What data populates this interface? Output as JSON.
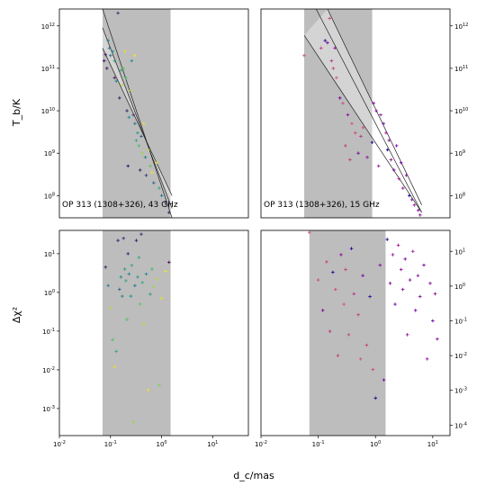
{
  "figure": {
    "shared_xlabel": "d_c/mas",
    "top_ylabel": "T_b/K",
    "bottom_ylabel": "Δχ²"
  },
  "chart_data": [
    {
      "type": "scatter",
      "panel": "top-left",
      "annotation": "OP 313 (1308+326), 43 GHz",
      "xscale": "log",
      "yscale": "log",
      "xlim": [
        0.01,
        50
      ],
      "ylim": [
        30000000,
        2500000000000
      ],
      "xticks": [],
      "xtick_labels": [],
      "yticks": [
        100000000,
        1000000000,
        10000000000,
        100000000000,
        1000000000000
      ],
      "ytick_labels": [
        "10^8",
        "10^9",
        "10^10",
        "10^11",
        "10^12"
      ],
      "yaxis_side": "left",
      "shaded_x_range": [
        0.07,
        1.5
      ],
      "fit_lines": [
        {
          "x": [
            0.07,
            1.6
          ],
          "y": [
            2500000000000,
            30000000
          ]
        },
        {
          "x": [
            0.07,
            1.6
          ],
          "y": [
            300000000000,
            100000000
          ]
        },
        {
          "x": [
            0.07,
            1.6
          ],
          "y": [
            900000000000,
            50000000
          ]
        }
      ],
      "colormap": "viridis",
      "points": [
        {
          "x": 0.075,
          "y": 150000000000,
          "c": 0.05
        },
        {
          "x": 0.08,
          "y": 210000000000,
          "c": 0.1
        },
        {
          "x": 0.085,
          "y": 100000000000,
          "c": 0.05
        },
        {
          "x": 0.09,
          "y": 450000000000,
          "c": 0.45
        },
        {
          "x": 0.095,
          "y": 300000000000,
          "c": 0.4
        },
        {
          "x": 0.1,
          "y": 200000000000,
          "c": 0.35
        },
        {
          "x": 0.11,
          "y": 250000000000,
          "c": 0.5
        },
        {
          "x": 0.12,
          "y": 150000000000,
          "c": 0.55
        },
        {
          "x": 0.12,
          "y": 60000000000,
          "c": 0.1
        },
        {
          "x": 0.13,
          "y": 50000000000,
          "c": 0.45
        },
        {
          "x": 0.14,
          "y": 2000000000000,
          "c": 0.15
        },
        {
          "x": 0.15,
          "y": 20000000000,
          "c": 0.1
        },
        {
          "x": 0.16,
          "y": 90000000000,
          "c": 0.6
        },
        {
          "x": 0.17,
          "y": 40000000000,
          "c": 0.9
        },
        {
          "x": 0.18,
          "y": 100000000000,
          "c": 0.75
        },
        {
          "x": 0.19,
          "y": 250000000000,
          "c": 0.95
        },
        {
          "x": 0.2,
          "y": 60000000000,
          "c": 0.7
        },
        {
          "x": 0.21,
          "y": 10000000000,
          "c": 0.1
        },
        {
          "x": 0.22,
          "y": 500000000,
          "c": 0.05
        },
        {
          "x": 0.23,
          "y": 7000000000,
          "c": 0.5
        },
        {
          "x": 0.25,
          "y": 30000000000,
          "c": 0.9
        },
        {
          "x": 0.26,
          "y": 150000000000,
          "c": 0.5
        },
        {
          "x": 0.28,
          "y": 8000000000,
          "c": 0.2
        },
        {
          "x": 0.3,
          "y": 200000000000,
          "c": 0.98
        },
        {
          "x": 0.3,
          "y": 5000000000,
          "c": 0.4
        },
        {
          "x": 0.32,
          "y": 2000000000,
          "c": 0.6
        },
        {
          "x": 0.34,
          "y": 3000000000,
          "c": 0.55
        },
        {
          "x": 0.36,
          "y": 1500000000,
          "c": 0.7
        },
        {
          "x": 0.38,
          "y": 400000000,
          "c": 0.1
        },
        {
          "x": 0.4,
          "y": 2500000000,
          "c": 0.3
        },
        {
          "x": 0.42,
          "y": 1000000000,
          "c": 0.85
        },
        {
          "x": 0.45,
          "y": 5000000000,
          "c": 0.95
        },
        {
          "x": 0.48,
          "y": 800000000,
          "c": 0.45
        },
        {
          "x": 0.5,
          "y": 300000000,
          "c": 0.2
        },
        {
          "x": 0.55,
          "y": 1200000000,
          "c": 0.9
        },
        {
          "x": 0.6,
          "y": 500000000,
          "c": 0.75
        },
        {
          "x": 0.65,
          "y": 350000000,
          "c": 0.97
        },
        {
          "x": 0.7,
          "y": 200000000,
          "c": 0.35
        },
        {
          "x": 0.8,
          "y": 600000000,
          "c": 0.95
        },
        {
          "x": 0.9,
          "y": 150000000,
          "c": 0.6
        },
        {
          "x": 1.0,
          "y": 100000000,
          "c": 0.4
        },
        {
          "x": 1.2,
          "y": 70000000,
          "c": 0.2
        },
        {
          "x": 1.4,
          "y": 40000000,
          "c": 0.1
        }
      ]
    },
    {
      "type": "scatter",
      "panel": "top-right",
      "annotation": "OP 313 (1308+326), 15 GHz",
      "xscale": "log",
      "yscale": "log",
      "xlim": [
        0.01,
        50
      ],
      "ylim": [
        30000000,
        2500000000000
      ],
      "xticks": [],
      "xtick_labels": [],
      "yticks": [
        100000000,
        1000000000,
        10000000000,
        100000000000,
        1000000000000
      ],
      "ytick_labels": [
        "10^8",
        "10^9",
        "10^10",
        "10^11",
        "10^12"
      ],
      "yaxis_side": "right",
      "shaded_x_range": [
        0.07,
        1.5
      ],
      "fit_lines": [
        {
          "x": [
            0.12,
            14
          ],
          "y": [
            2500000000000,
            40000000
          ]
        },
        {
          "x": [
            0.07,
            14
          ],
          "y": [
            600000000000,
            40000000
          ]
        },
        {
          "x": [
            0.2,
            14
          ],
          "y": [
            2500000000000,
            60000000
          ]
        }
      ],
      "colormap": "plasma",
      "points": [
        {
          "x": 0.07,
          "y": 200000000000,
          "c": 0.65
        },
        {
          "x": 0.15,
          "y": 300000000000,
          "c": 0.6
        },
        {
          "x": 0.18,
          "y": 450000000000,
          "c": 0.1
        },
        {
          "x": 0.2,
          "y": 400000000000,
          "c": 0.3
        },
        {
          "x": 0.22,
          "y": 1500000000000,
          "c": 0.65
        },
        {
          "x": 0.24,
          "y": 150000000000,
          "c": 0.55
        },
        {
          "x": 0.26,
          "y": 100000000000,
          "c": 0.6
        },
        {
          "x": 0.28,
          "y": 300000000000,
          "c": 0.35
        },
        {
          "x": 0.3,
          "y": 60000000000,
          "c": 0.7
        },
        {
          "x": 0.35,
          "y": 20000000000,
          "c": 0.25
        },
        {
          "x": 0.4,
          "y": 15000000000,
          "c": 0.65
        },
        {
          "x": 0.45,
          "y": 1500000000,
          "c": 0.6
        },
        {
          "x": 0.5,
          "y": 8000000000,
          "c": 0.35
        },
        {
          "x": 0.55,
          "y": 700000000,
          "c": 0.6
        },
        {
          "x": 0.6,
          "y": 5000000000,
          "c": 0.7
        },
        {
          "x": 0.7,
          "y": 3000000000,
          "c": 0.65
        },
        {
          "x": 0.8,
          "y": 1000000000,
          "c": 0.3
        },
        {
          "x": 0.9,
          "y": 2500000000,
          "c": 0.55
        },
        {
          "x": 1.0,
          "y": 4000000000,
          "c": 0.65
        },
        {
          "x": 1.2,
          "y": 800000000,
          "c": 0.4
        },
        {
          "x": 1.5,
          "y": 1800000000,
          "c": 0.05
        },
        {
          "x": 1.6,
          "y": 15000000000,
          "c": 0.3
        },
        {
          "x": 1.8,
          "y": 10000000000,
          "c": 0.35
        },
        {
          "x": 2.0,
          "y": 500000000,
          "c": 0.45
        },
        {
          "x": 2.2,
          "y": 8000000000,
          "c": 0.4
        },
        {
          "x": 2.5,
          "y": 5000000000,
          "c": 0.3
        },
        {
          "x": 2.8,
          "y": 3000000000,
          "c": 0.45
        },
        {
          "x": 3.0,
          "y": 1200000000,
          "c": 0.05
        },
        {
          "x": 3.2,
          "y": 2000000000,
          "c": 0.35
        },
        {
          "x": 3.5,
          "y": 700000000,
          "c": 0.4
        },
        {
          "x": 4.0,
          "y": 400000000,
          "c": 0.3
        },
        {
          "x": 4.5,
          "y": 1500000000,
          "c": 0.35
        },
        {
          "x": 5.0,
          "y": 250000000,
          "c": 0.45
        },
        {
          "x": 5.5,
          "y": 600000000,
          "c": 0.3
        },
        {
          "x": 6.0,
          "y": 150000000,
          "c": 0.4
        },
        {
          "x": 7.0,
          "y": 300000000,
          "c": 0.35
        },
        {
          "x": 8.0,
          "y": 100000000,
          "c": 0.05
        },
        {
          "x": 9.0,
          "y": 80000000,
          "c": 0.35
        },
        {
          "x": 10.0,
          "y": 60000000,
          "c": 0.4
        },
        {
          "x": 12.0,
          "y": 45000000,
          "c": 0.3
        },
        {
          "x": 13.0,
          "y": 35000000,
          "c": 0.35
        }
      ]
    },
    {
      "type": "scatter",
      "panel": "bottom-left",
      "xscale": "log",
      "yscale": "log",
      "xlim": [
        0.01,
        50
      ],
      "ylim": [
        0.0002,
        40
      ],
      "xticks": [
        0.01,
        0.1,
        1,
        10
      ],
      "xtick_labels": [
        "10^-2",
        "10^-1",
        "10^0",
        "10^1"
      ],
      "yticks": [
        0.001,
        0.01,
        0.1,
        1,
        10
      ],
      "ytick_labels": [
        "10^-3",
        "10^-2",
        "10^-1",
        "10^0",
        "10^1"
      ],
      "yaxis_side": "left",
      "shaded_x_range": [
        0.07,
        1.5
      ],
      "colormap": "viridis",
      "points": [
        {
          "x": 0.08,
          "y": 4.5,
          "c": 0.1
        },
        {
          "x": 0.09,
          "y": 1.5,
          "c": 0.45
        },
        {
          "x": 0.1,
          "y": 0.4,
          "c": 0.9
        },
        {
          "x": 0.11,
          "y": 0.06,
          "c": 0.7
        },
        {
          "x": 0.12,
          "y": 0.012,
          "c": 0.95
        },
        {
          "x": 0.13,
          "y": 0.03,
          "c": 0.6
        },
        {
          "x": 0.14,
          "y": 22,
          "c": 0.1
        },
        {
          "x": 0.15,
          "y": 1.2,
          "c": 0.35
        },
        {
          "x": 0.16,
          "y": 2.5,
          "c": 0.5
        },
        {
          "x": 0.17,
          "y": 0.8,
          "c": 0.45
        },
        {
          "x": 0.18,
          "y": 25,
          "c": 0.15
        },
        {
          "x": 0.19,
          "y": 4,
          "c": 0.55
        },
        {
          "x": 0.2,
          "y": 2.0,
          "c": 0.6
        },
        {
          "x": 0.21,
          "y": 0.2,
          "c": 0.7
        },
        {
          "x": 0.22,
          "y": 10,
          "c": 0.1
        },
        {
          "x": 0.23,
          "y": 3,
          "c": 0.45
        },
        {
          "x": 0.25,
          "y": 0.8,
          "c": 0.5
        },
        {
          "x": 0.26,
          "y": 5,
          "c": 0.6
        },
        {
          "x": 0.28,
          "y": 0.00045,
          "c": 0.85
        },
        {
          "x": 0.3,
          "y": 1.5,
          "c": 0.4
        },
        {
          "x": 0.32,
          "y": 22,
          "c": 0.1
        },
        {
          "x": 0.34,
          "y": 2.5,
          "c": 0.55
        },
        {
          "x": 0.36,
          "y": 8,
          "c": 0.6
        },
        {
          "x": 0.38,
          "y": 0.5,
          "c": 0.75
        },
        {
          "x": 0.4,
          "y": 32,
          "c": 0.15
        },
        {
          "x": 0.42,
          "y": 1.8,
          "c": 0.6
        },
        {
          "x": 0.45,
          "y": 0.15,
          "c": 0.9
        },
        {
          "x": 0.5,
          "y": 3,
          "c": 0.5
        },
        {
          "x": 0.55,
          "y": 0.003,
          "c": 0.97
        },
        {
          "x": 0.6,
          "y": 0.9,
          "c": 0.55
        },
        {
          "x": 0.65,
          "y": 4,
          "c": 0.65
        },
        {
          "x": 0.7,
          "y": 1.4,
          "c": 0.85
        },
        {
          "x": 0.8,
          "y": 2.2,
          "c": 0.9
        },
        {
          "x": 0.9,
          "y": 0.004,
          "c": 0.8
        },
        {
          "x": 1.0,
          "y": 0.7,
          "c": 0.95
        },
        {
          "x": 1.2,
          "y": 3.5,
          "c": 0.98
        },
        {
          "x": 1.4,
          "y": 6,
          "c": 0.05
        }
      ]
    },
    {
      "type": "scatter",
      "panel": "bottom-right",
      "xscale": "log",
      "yscale": "log",
      "xlim": [
        0.01,
        20
      ],
      "ylim": [
        5e-05,
        40
      ],
      "xticks": [
        0.01,
        0.1,
        1,
        10
      ],
      "xtick_labels": [
        "10^-2",
        "10^-1",
        "10^0",
        "10^1"
      ],
      "yticks": [
        0.0001,
        0.001,
        0.01,
        0.1,
        1,
        10
      ],
      "ytick_labels": [
        "10^-4",
        "10^-3",
        "10^-2",
        "10^-1",
        "10^0",
        "10^1"
      ],
      "yaxis_side": "right",
      "shaded_x_range": [
        0.07,
        1.5
      ],
      "colormap": "plasma",
      "points": [
        {
          "x": 0.07,
          "y": 35,
          "c": 0.7
        },
        {
          "x": 0.1,
          "y": 1.5,
          "c": 0.65
        },
        {
          "x": 0.12,
          "y": 0.2,
          "c": 0.3
        },
        {
          "x": 0.14,
          "y": 5,
          "c": 0.6
        },
        {
          "x": 0.16,
          "y": 0.05,
          "c": 0.55
        },
        {
          "x": 0.18,
          "y": 2.5,
          "c": 0.1
        },
        {
          "x": 0.2,
          "y": 0.8,
          "c": 0.65
        },
        {
          "x": 0.22,
          "y": 0.01,
          "c": 0.6
        },
        {
          "x": 0.25,
          "y": 8,
          "c": 0.35
        },
        {
          "x": 0.28,
          "y": 0.3,
          "c": 0.7
        },
        {
          "x": 0.3,
          "y": 3,
          "c": 0.6
        },
        {
          "x": 0.34,
          "y": 0.04,
          "c": 0.65
        },
        {
          "x": 0.38,
          "y": 12,
          "c": 0.1
        },
        {
          "x": 0.42,
          "y": 0.6,
          "c": 0.55
        },
        {
          "x": 0.5,
          "y": 0.15,
          "c": 0.6
        },
        {
          "x": 0.55,
          "y": 0.008,
          "c": 0.7
        },
        {
          "x": 0.6,
          "y": 2,
          "c": 0.3
        },
        {
          "x": 0.7,
          "y": 0.02,
          "c": 0.6
        },
        {
          "x": 0.8,
          "y": 0.5,
          "c": 0.1
        },
        {
          "x": 0.9,
          "y": 0.004,
          "c": 0.65
        },
        {
          "x": 1.0,
          "y": 0.0006,
          "c": 0.05
        },
        {
          "x": 1.2,
          "y": 4,
          "c": 0.35
        },
        {
          "x": 1.4,
          "y": 0.002,
          "c": 0.3
        },
        {
          "x": 1.6,
          "y": 22,
          "c": 0.05
        },
        {
          "x": 1.8,
          "y": 1.2,
          "c": 0.35
        },
        {
          "x": 2.0,
          "y": 8,
          "c": 0.4
        },
        {
          "x": 2.2,
          "y": 0.3,
          "c": 0.3
        },
        {
          "x": 2.5,
          "y": 15,
          "c": 0.45
        },
        {
          "x": 2.8,
          "y": 3,
          "c": 0.4
        },
        {
          "x": 3.0,
          "y": 0.8,
          "c": 0.35
        },
        {
          "x": 3.3,
          "y": 6,
          "c": 0.3
        },
        {
          "x": 3.6,
          "y": 0.04,
          "c": 0.4
        },
        {
          "x": 4.0,
          "y": 1.5,
          "c": 0.35
        },
        {
          "x": 4.5,
          "y": 10,
          "c": 0.45
        },
        {
          "x": 5.0,
          "y": 0.2,
          "c": 0.3
        },
        {
          "x": 5.5,
          "y": 2,
          "c": 0.4
        },
        {
          "x": 6.0,
          "y": 0.5,
          "c": 0.35
        },
        {
          "x": 7.0,
          "y": 4,
          "c": 0.3
        },
        {
          "x": 8.0,
          "y": 0.008,
          "c": 0.4
        },
        {
          "x": 9.0,
          "y": 1.2,
          "c": 0.35
        },
        {
          "x": 10.0,
          "y": 0.1,
          "c": 0.3
        },
        {
          "x": 11.0,
          "y": 0.6,
          "c": 0.4
        },
        {
          "x": 12.0,
          "y": 0.03,
          "c": 0.35
        }
      ]
    }
  ]
}
